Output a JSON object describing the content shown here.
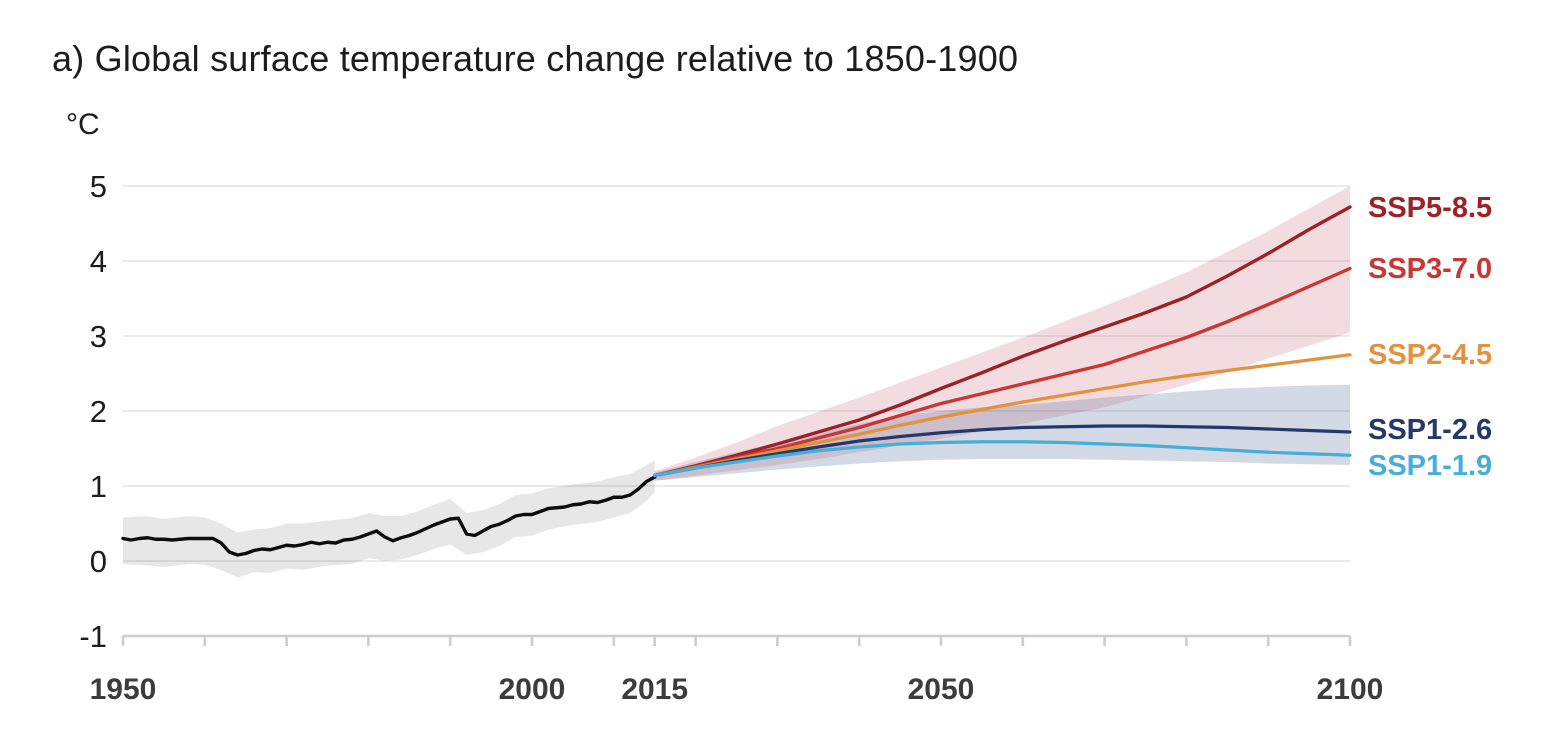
{
  "figure": {
    "title": "a) Global surface temperature change relative to 1850-1900",
    "unit": "°C"
  },
  "chart_data": {
    "type": "line",
    "title": "a) Global surface temperature change relative to 1850-1900",
    "ylabel": "°C",
    "xlabel": "",
    "grid": true,
    "legend_position": "right-edge-labels",
    "x_axis": {
      "range": [
        1950,
        2100
      ],
      "labeled_ticks": [
        1950,
        2000,
        2015,
        2050,
        2100
      ],
      "minor_ticks": [
        1950,
        1960,
        1970,
        1980,
        1990,
        2000,
        2010,
        2015,
        2020,
        2030,
        2040,
        2050,
        2060,
        2070,
        2080,
        2090,
        2100
      ]
    },
    "y_axis": {
      "range": [
        -1,
        5
      ],
      "ticks": [
        -1,
        0,
        1,
        2,
        3,
        4,
        5
      ]
    },
    "colors": {
      "historical": "#0d0d0d",
      "historical_band": "rgba(0,0,0,0.095)",
      "ssp5_85": "#9b2226",
      "ssp3_70": "#c93735",
      "ssp2_45": "#e2923c",
      "ssp1_26": "#25386b",
      "ssp1_19": "#45aed9",
      "red_band": "rgba(190,60,80,0.18)",
      "blue_band": "rgba(75,95,150,0.24)",
      "gridline": "#e3e3e3",
      "axis": "#cdcdcd",
      "axis_text": "#1c1c1c",
      "x_text": "#3c3c3c"
    },
    "series": [
      {
        "name": "Historical",
        "color_key": "historical",
        "width": 3.4,
        "x": [
          1950,
          1951,
          1952,
          1953,
          1954,
          1955,
          1956,
          1957,
          1958,
          1959,
          1960,
          1961,
          1962,
          1963,
          1964,
          1965,
          1966,
          1967,
          1968,
          1969,
          1970,
          1971,
          1972,
          1973,
          1974,
          1975,
          1976,
          1977,
          1978,
          1979,
          1980,
          1981,
          1982,
          1983,
          1984,
          1985,
          1986,
          1987,
          1988,
          1989,
          1990,
          1991,
          1992,
          1993,
          1994,
          1995,
          1996,
          1997,
          1998,
          1999,
          2000,
          2001,
          2002,
          2003,
          2004,
          2005,
          2006,
          2007,
          2008,
          2009,
          2010,
          2011,
          2012,
          2013,
          2014,
          2015
        ],
        "y": [
          0.3,
          0.28,
          0.3,
          0.31,
          0.29,
          0.29,
          0.28,
          0.29,
          0.3,
          0.3,
          0.3,
          0.3,
          0.24,
          0.12,
          0.08,
          0.1,
          0.14,
          0.16,
          0.15,
          0.18,
          0.21,
          0.2,
          0.22,
          0.25,
          0.23,
          0.25,
          0.24,
          0.28,
          0.29,
          0.32,
          0.36,
          0.4,
          0.32,
          0.27,
          0.31,
          0.34,
          0.38,
          0.43,
          0.48,
          0.52,
          0.56,
          0.57,
          0.36,
          0.34,
          0.4,
          0.46,
          0.49,
          0.54,
          0.6,
          0.62,
          0.62,
          0.66,
          0.7,
          0.71,
          0.72,
          0.75,
          0.76,
          0.79,
          0.78,
          0.81,
          0.85,
          0.85,
          0.88,
          0.96,
          1.06,
          1.12
        ]
      },
      {
        "name": "SSP5-8.5",
        "color_key": "ssp5_85",
        "width": 3.4,
        "x": [
          2015,
          2020,
          2025,
          2030,
          2035,
          2040,
          2045,
          2050,
          2055,
          2060,
          2065,
          2070,
          2075,
          2080,
          2085,
          2090,
          2095,
          2100
        ],
        "y": [
          1.14,
          1.27,
          1.41,
          1.56,
          1.72,
          1.88,
          2.08,
          2.3,
          2.51,
          2.73,
          2.93,
          3.12,
          3.31,
          3.52,
          3.8,
          4.1,
          4.42,
          4.72
        ]
      },
      {
        "name": "SSP3-7.0",
        "color_key": "ssp3_70",
        "width": 3.4,
        "x": [
          2015,
          2020,
          2025,
          2030,
          2035,
          2040,
          2045,
          2050,
          2055,
          2060,
          2065,
          2070,
          2075,
          2080,
          2085,
          2090,
          2095,
          2100
        ],
        "y": [
          1.14,
          1.26,
          1.38,
          1.5,
          1.64,
          1.78,
          1.94,
          2.1,
          2.23,
          2.36,
          2.49,
          2.62,
          2.8,
          2.98,
          3.19,
          3.42,
          3.66,
          3.9
        ]
      },
      {
        "name": "SSP2-4.5",
        "color_key": "ssp2_45",
        "width": 3.2,
        "x": [
          2015,
          2020,
          2025,
          2030,
          2035,
          2040,
          2045,
          2050,
          2055,
          2060,
          2065,
          2070,
          2075,
          2080,
          2085,
          2090,
          2095,
          2100
        ],
        "y": [
          1.14,
          1.25,
          1.36,
          1.47,
          1.58,
          1.69,
          1.81,
          1.92,
          2.02,
          2.12,
          2.21,
          2.3,
          2.39,
          2.47,
          2.54,
          2.61,
          2.68,
          2.75
        ]
      },
      {
        "name": "SSP1-2.6",
        "color_key": "ssp1_26",
        "width": 3.2,
        "x": [
          2015,
          2020,
          2025,
          2030,
          2035,
          2040,
          2045,
          2050,
          2055,
          2060,
          2065,
          2070,
          2075,
          2080,
          2085,
          2090,
          2095,
          2100
        ],
        "y": [
          1.14,
          1.24,
          1.34,
          1.43,
          1.52,
          1.6,
          1.66,
          1.71,
          1.75,
          1.78,
          1.79,
          1.8,
          1.8,
          1.79,
          1.78,
          1.76,
          1.74,
          1.72
        ]
      },
      {
        "name": "SSP1-1.9",
        "color_key": "ssp1_19",
        "width": 3.2,
        "x": [
          2015,
          2020,
          2025,
          2030,
          2035,
          2040,
          2045,
          2050,
          2055,
          2060,
          2065,
          2070,
          2075,
          2080,
          2085,
          2090,
          2095,
          2100
        ],
        "y": [
          1.14,
          1.24,
          1.32,
          1.4,
          1.47,
          1.52,
          1.56,
          1.58,
          1.59,
          1.59,
          1.58,
          1.56,
          1.54,
          1.51,
          1.48,
          1.45,
          1.43,
          1.41
        ]
      }
    ],
    "bands": [
      {
        "name": "historical-uncertainty-band",
        "color_key": "historical_band",
        "x": [
          1950,
          1953,
          1955,
          1958,
          1960,
          1962,
          1964,
          1966,
          1968,
          1970,
          1972,
          1975,
          1978,
          1980,
          1982,
          1984,
          1986,
          1988,
          1990,
          1992,
          1994,
          1996,
          1998,
          2000,
          2002,
          2005,
          2008,
          2010,
          2012,
          2014,
          2015
        ],
        "top": [
          0.58,
          0.6,
          0.56,
          0.6,
          0.58,
          0.5,
          0.38,
          0.42,
          0.44,
          0.5,
          0.5,
          0.54,
          0.57,
          0.64,
          0.6,
          0.6,
          0.66,
          0.75,
          0.83,
          0.64,
          0.68,
          0.76,
          0.88,
          0.9,
          0.97,
          1.02,
          1.06,
          1.12,
          1.16,
          1.28,
          1.34
        ],
        "bottom": [
          -0.04,
          -0.06,
          -0.08,
          -0.04,
          -0.05,
          -0.12,
          -0.22,
          -0.15,
          -0.16,
          -0.1,
          -0.12,
          -0.06,
          -0.04,
          0.04,
          0.0,
          0.02,
          0.08,
          0.16,
          0.22,
          0.08,
          0.12,
          0.2,
          0.32,
          0.34,
          0.42,
          0.48,
          0.52,
          0.58,
          0.64,
          0.8,
          0.92
        ]
      },
      {
        "name": "red-scenarios-range-band",
        "color_key": "red_band",
        "x": [
          2015,
          2020,
          2025,
          2030,
          2035,
          2040,
          2045,
          2050,
          2055,
          2060,
          2065,
          2070,
          2075,
          2080,
          2085,
          2090,
          2095,
          2100
        ],
        "top": [
          1.2,
          1.38,
          1.58,
          1.8,
          1.99,
          2.18,
          2.38,
          2.58,
          2.78,
          2.98,
          3.19,
          3.4,
          3.62,
          3.85,
          4.12,
          4.4,
          4.7,
          5.0
        ],
        "bottom": [
          1.07,
          1.14,
          1.21,
          1.28,
          1.36,
          1.45,
          1.54,
          1.63,
          1.73,
          1.83,
          1.94,
          2.05,
          2.2,
          2.35,
          2.52,
          2.7,
          2.87,
          3.05
        ]
      },
      {
        "name": "blue-scenarios-range-band",
        "color_key": "blue_band",
        "x": [
          2015,
          2020,
          2025,
          2030,
          2035,
          2040,
          2045,
          2050,
          2055,
          2060,
          2065,
          2070,
          2075,
          2080,
          2085,
          2090,
          2095,
          2100
        ],
        "top": [
          1.18,
          1.32,
          1.45,
          1.58,
          1.71,
          1.83,
          1.94,
          2.0,
          2.05,
          2.08,
          2.13,
          2.18,
          2.22,
          2.26,
          2.3,
          2.32,
          2.34,
          2.35
        ],
        "bottom": [
          1.07,
          1.12,
          1.17,
          1.22,
          1.26,
          1.3,
          1.33,
          1.35,
          1.36,
          1.36,
          1.36,
          1.35,
          1.34,
          1.33,
          1.32,
          1.3,
          1.29,
          1.28
        ]
      }
    ],
    "scenario_labels": [
      {
        "text": "SSP5-8.5",
        "color_key": "ssp5_85",
        "anchor_value": 4.72
      },
      {
        "text": "SSP3-7.0",
        "color_key": "ssp3_70",
        "anchor_value": 3.91
      },
      {
        "text": "SSP2-4.5",
        "color_key": "ssp2_45",
        "anchor_value": 2.76
      },
      {
        "text": "SSP1-2.6",
        "color_key": "ssp1_26",
        "anchor_value": 1.76
      },
      {
        "text": "SSP1-1.9",
        "color_key": "ssp1_19",
        "anchor_value": 1.28
      }
    ]
  }
}
